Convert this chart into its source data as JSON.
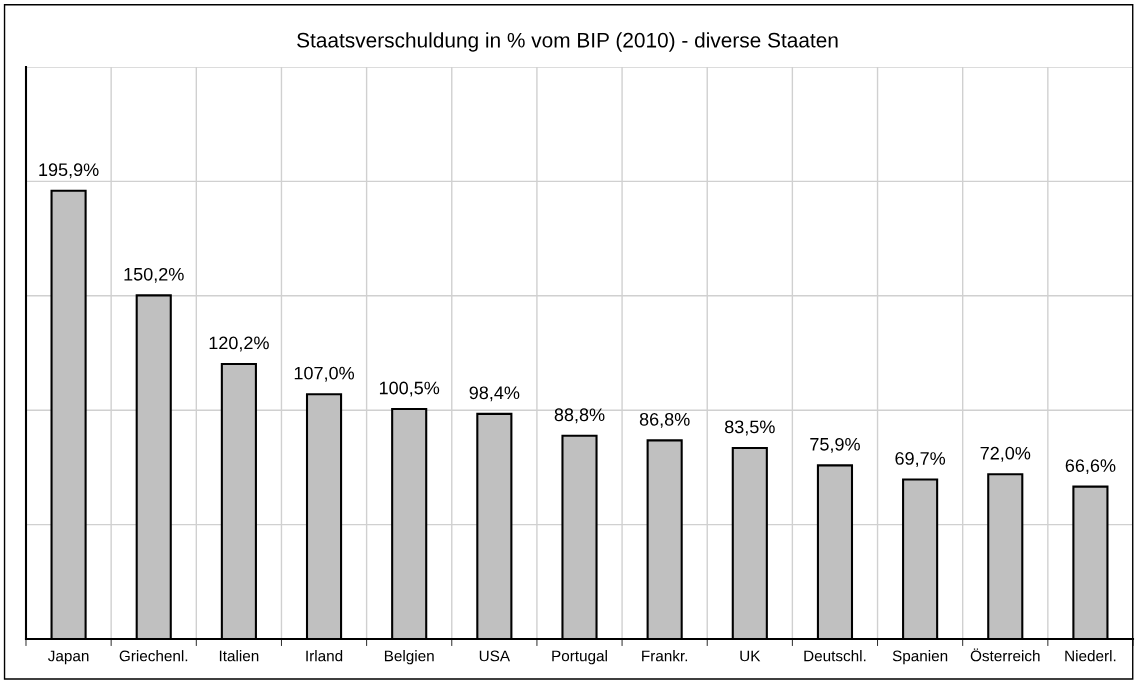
{
  "chart_data": {
    "type": "bar",
    "title": "Staatsverschuldung in % vom BIP (2010) - diverse Staaten",
    "categories": [
      "Japan",
      "Griechenl.",
      "Italien",
      "Irland",
      "Belgien",
      "USA",
      "Portugal",
      "Frankr.",
      "UK",
      "Deutschl.",
      "Spanien",
      "Österreich",
      "Niederl."
    ],
    "values": [
      195.9,
      150.2,
      120.2,
      107.0,
      100.5,
      98.4,
      88.8,
      86.8,
      83.5,
      75.9,
      69.7,
      72.0,
      66.6
    ],
    "value_labels": [
      "195,9%",
      "150,2%",
      "120,2%",
      "107,0%",
      "100,5%",
      "98,4%",
      "88,8%",
      "86,8%",
      "83,5%",
      "75,9%",
      "69,7%",
      "72,0%",
      "66,6%"
    ],
    "color": "#c0c0c0",
    "ylim": [
      0,
      250
    ],
    "yticks": [
      {
        "value": 0,
        "label": null
      },
      {
        "value": 50,
        "label": null
      },
      {
        "value": 100,
        "label": null
      },
      {
        "value": 150,
        "label": null
      },
      {
        "value": 200,
        "label": null
      },
      {
        "value": 250,
        "label": null
      }
    ],
    "tick_labels": "x",
    "grid": true
  }
}
